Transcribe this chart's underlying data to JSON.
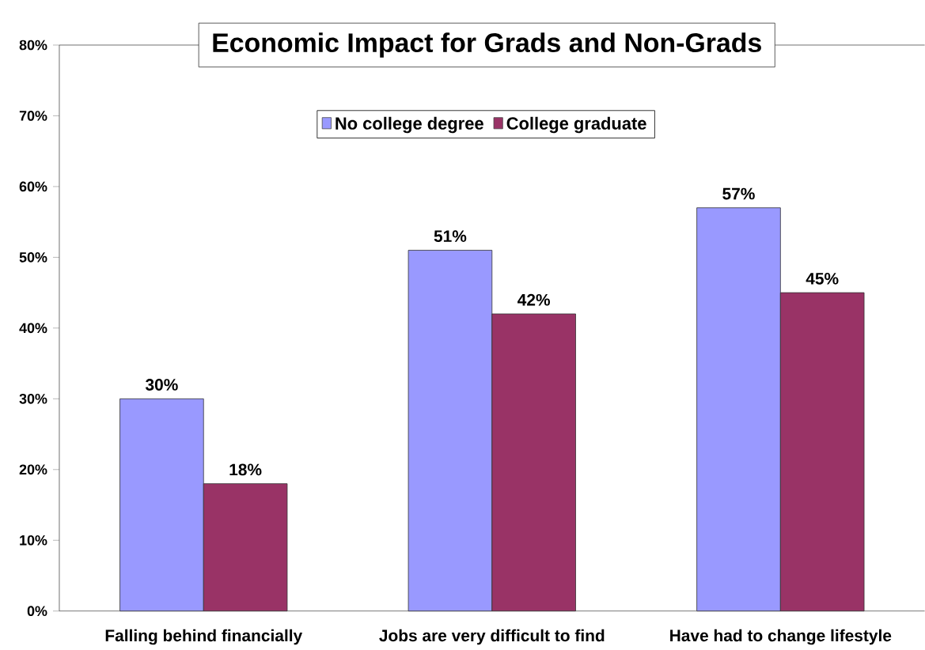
{
  "chart_data": {
    "type": "bar",
    "title": "Economic Impact for Grads and Non-Grads",
    "categories": [
      "Falling behind financially",
      "Jobs are very difficult to find",
      "Have had to change lifestyle"
    ],
    "series": [
      {
        "name": "No college degree",
        "color": "#9999ff",
        "values": [
          30,
          51,
          57
        ],
        "value_labels": [
          "30%",
          "51%",
          "57%"
        ]
      },
      {
        "name": "College graduate",
        "color": "#993366",
        "values": [
          18,
          42,
          45
        ],
        "value_labels": [
          "18%",
          "42%",
          "45%"
        ]
      }
    ],
    "ylim": [
      0,
      80
    ],
    "yticks": [
      {
        "value": 0,
        "label": "0%"
      },
      {
        "value": 10,
        "label": "10%"
      },
      {
        "value": 20,
        "label": "20%"
      },
      {
        "value": 30,
        "label": "30%"
      },
      {
        "value": 40,
        "label": "40%"
      },
      {
        "value": 50,
        "label": "50%"
      },
      {
        "value": 60,
        "label": "60%"
      },
      {
        "value": 70,
        "label": "70%"
      },
      {
        "value": 80,
        "label": "80%"
      }
    ],
    "legend": "top"
  }
}
